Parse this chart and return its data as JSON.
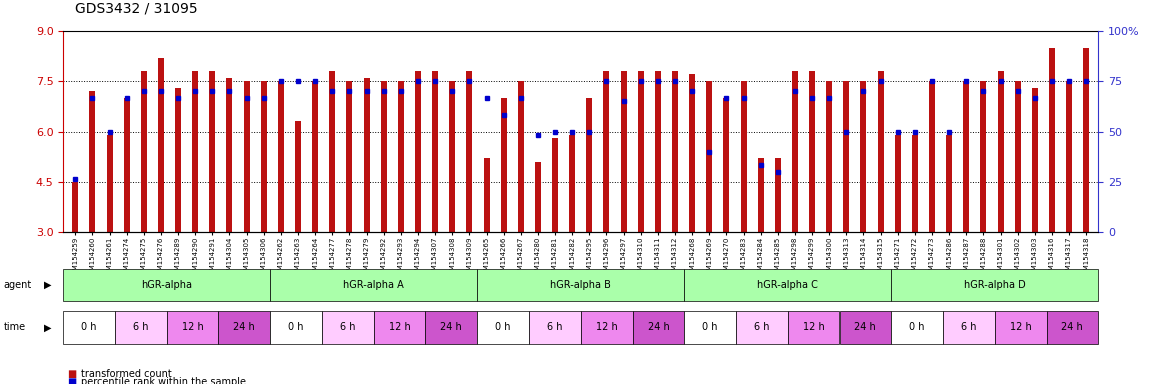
{
  "title": "GDS3432 / 31095",
  "samples": [
    "GSM154259",
    "GSM154260",
    "GSM154261",
    "GSM154274",
    "GSM154275",
    "GSM154276",
    "GSM154289",
    "GSM154290",
    "GSM154291",
    "GSM154304",
    "GSM154305",
    "GSM154306",
    "GSM154262",
    "GSM154263",
    "GSM154264",
    "GSM154277",
    "GSM154278",
    "GSM154279",
    "GSM154292",
    "GSM154293",
    "GSM154294",
    "GSM154307",
    "GSM154308",
    "GSM154309",
    "GSM154265",
    "GSM154266",
    "GSM154267",
    "GSM154280",
    "GSM154281",
    "GSM154282",
    "GSM154295",
    "GSM154296",
    "GSM154297",
    "GSM154310",
    "GSM154311",
    "GSM154312",
    "GSM154268",
    "GSM154269",
    "GSM154270",
    "GSM154283",
    "GSM154284",
    "GSM154285",
    "GSM154298",
    "GSM154299",
    "GSM154300",
    "GSM154313",
    "GSM154314",
    "GSM154315",
    "GSM154271",
    "GSM154272",
    "GSM154273",
    "GSM154286",
    "GSM154287",
    "GSM154288",
    "GSM154301",
    "GSM154302",
    "GSM154303",
    "GSM154316",
    "GSM154317",
    "GSM154318"
  ],
  "red_values": [
    4.5,
    7.2,
    5.9,
    7.0,
    7.8,
    8.2,
    7.3,
    7.8,
    7.8,
    7.6,
    7.5,
    7.5,
    7.5,
    6.3,
    7.5,
    7.8,
    7.5,
    7.6,
    7.5,
    7.5,
    7.8,
    7.8,
    7.5,
    7.8,
    5.2,
    7.0,
    7.5,
    5.1,
    5.8,
    5.9,
    7.0,
    7.8,
    7.8,
    7.8,
    7.8,
    7.8,
    7.7,
    7.5,
    7.0,
    7.5,
    5.2,
    5.2,
    7.8,
    7.8,
    7.5,
    7.5,
    7.5,
    7.8,
    5.9,
    5.9,
    7.5,
    5.9,
    7.5,
    7.5,
    7.8,
    7.5,
    7.3,
    8.5,
    7.5,
    8.5
  ],
  "blue_pct": [
    4.6,
    7.0,
    6.0,
    7.0,
    7.2,
    7.2,
    7.0,
    7.2,
    7.2,
    7.2,
    7.0,
    7.0,
    7.5,
    7.5,
    7.5,
    7.2,
    7.2,
    7.2,
    7.2,
    7.2,
    7.5,
    7.5,
    7.2,
    7.5,
    7.0,
    6.5,
    7.0,
    5.9,
    6.0,
    6.0,
    6.0,
    7.5,
    6.9,
    7.5,
    7.5,
    7.5,
    7.2,
    5.4,
    7.0,
    7.0,
    5.0,
    4.8,
    7.2,
    7.0,
    7.0,
    6.0,
    7.2,
    7.5,
    6.0,
    6.0,
    7.5,
    6.0,
    7.5,
    7.2,
    7.5,
    7.2,
    7.0,
    7.5,
    7.5,
    7.5
  ],
  "ylim_left": [
    3,
    9
  ],
  "yticks_left": [
    3,
    4.5,
    6,
    7.5,
    9
  ],
  "ylim_right": [
    0,
    100
  ],
  "yticks_right": [
    0,
    25,
    50,
    75,
    100
  ],
  "hgrid_values": [
    4.5,
    6.0,
    7.5
  ],
  "bar_color": "#bb1111",
  "dot_color": "#0000cc",
  "bg_color": "#ffffff",
  "left_axis_color": "#cc0000",
  "right_axis_color": "#3333cc",
  "groups": [
    {
      "label": "hGR-alpha",
      "start": 0,
      "end": 12,
      "color": "#aaffaa"
    },
    {
      "label": "hGR-alpha A",
      "start": 12,
      "end": 24,
      "color": "#aaffaa"
    },
    {
      "label": "hGR-alpha B",
      "start": 24,
      "end": 36,
      "color": "#aaffaa"
    },
    {
      "label": "hGR-alpha C",
      "start": 36,
      "end": 48,
      "color": "#aaffaa"
    },
    {
      "label": "hGR-alpha D",
      "start": 48,
      "end": 60,
      "color": "#aaffaa"
    }
  ],
  "time_labels": [
    "0 h",
    "6 h",
    "12 h",
    "24 h"
  ],
  "time_colors": [
    "#ffffff",
    "#ffccff",
    "#ee88ee",
    "#cc55cc"
  ],
  "legend_red": "transformed count",
  "legend_blue": "percentile rank within the sample",
  "bar_width": 0.35,
  "title_fontsize": 10,
  "tick_fontsize": 5.0,
  "label_fontsize": 7.5
}
